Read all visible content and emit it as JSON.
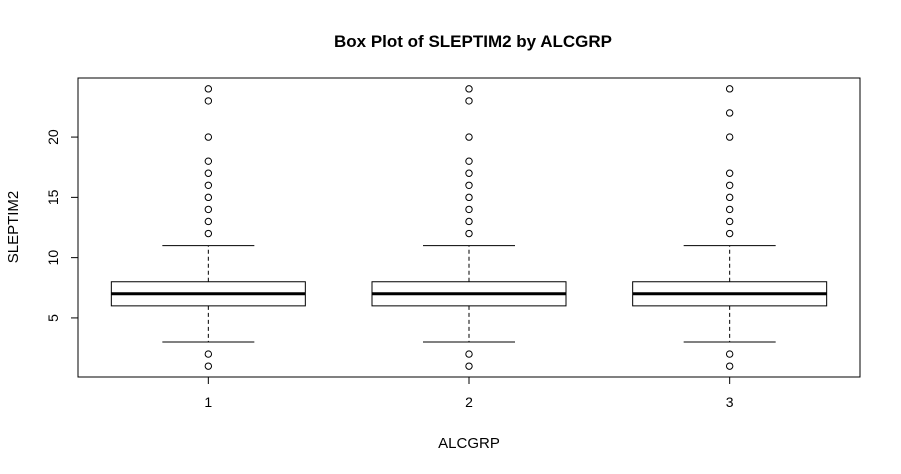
{
  "chart_data": {
    "type": "box",
    "title": "Box Plot of SLEPTIM2 by ALCGRP",
    "xlabel": "ALCGRP",
    "ylabel": "SLEPTIM2",
    "categories": [
      "1",
      "2",
      "3"
    ],
    "yticks": [
      5,
      10,
      15,
      20
    ],
    "ylim": [
      0.1,
      24.9
    ],
    "grid": false,
    "boxes": [
      {
        "category": "1",
        "whisker_low": 3,
        "q1": 6,
        "median": 7,
        "q3": 8,
        "whisker_high": 11,
        "outliers": [
          1,
          2,
          12,
          13,
          14,
          15,
          16,
          17,
          18,
          20,
          23,
          24
        ]
      },
      {
        "category": "2",
        "whisker_low": 3,
        "q1": 6,
        "median": 7,
        "q3": 8,
        "whisker_high": 11,
        "outliers": [
          1,
          2,
          12,
          13,
          14,
          15,
          16,
          17,
          18,
          20,
          23,
          24
        ]
      },
      {
        "category": "3",
        "whisker_low": 3,
        "q1": 6,
        "median": 7,
        "q3": 8,
        "whisker_high": 11,
        "outliers": [
          1,
          2,
          12,
          13,
          14,
          15,
          16,
          17,
          20,
          22,
          24
        ]
      }
    ]
  }
}
